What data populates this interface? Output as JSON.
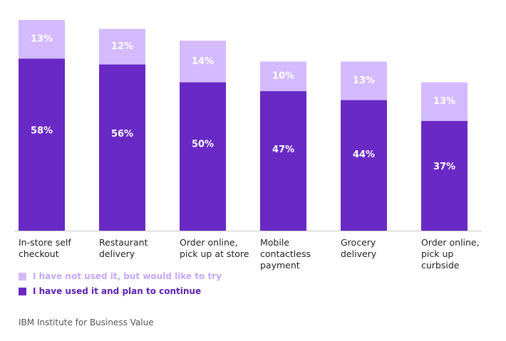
{
  "chart_data": {
    "type": "bar",
    "stacked": true,
    "categories": [
      "In-store self\ncheckout",
      "Restaurant\ndelivery",
      "Order online,\npick up at store",
      "Mobile\ncontactless\npayment",
      "Grocery\ndelivery",
      "Order online,\npick up\ncurbside"
    ],
    "series": [
      {
        "name": "I have used it and plan to continue",
        "color": "#6929c4",
        "values": [
          58,
          56,
          50,
          47,
          44,
          37
        ],
        "labels": [
          "58%",
          "56%",
          "50%",
          "47%",
          "44%",
          "37%"
        ]
      },
      {
        "name": "I have not used it, but would like to try",
        "color": "#d4bbff",
        "values": [
          13,
          12,
          14,
          10,
          13,
          13
        ],
        "labels": [
          "13%",
          "12%",
          "14%",
          "10%",
          "13%",
          "13%"
        ]
      }
    ],
    "ylim": [
      0,
      71
    ],
    "legend_order": [
      1,
      0
    ],
    "legend_position": "bottom-left",
    "grid": false,
    "source": "IBM Institute for Business Value"
  }
}
